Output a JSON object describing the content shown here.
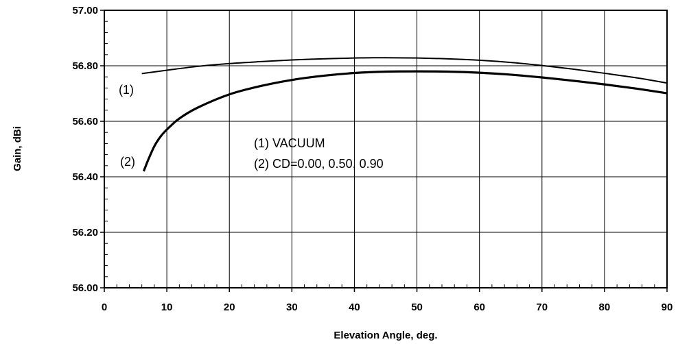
{
  "chart_data": {
    "type": "line",
    "title": "",
    "xlabel": "Elevation Angle, deg.",
    "ylabel": "Gain, dBi",
    "xlim": [
      0,
      90
    ],
    "ylim": [
      56.0,
      57.0
    ],
    "x_ticks": [
      0,
      10,
      20,
      30,
      40,
      50,
      60,
      70,
      80,
      90
    ],
    "y_ticks": [
      "56.00",
      "56.20",
      "56.40",
      "56.60",
      "56.80",
      "57.00"
    ],
    "grid": true,
    "series": [
      {
        "name": "(1) VACUUM",
        "marker_label": "(1)",
        "x": [
          6,
          10,
          15,
          20,
          25,
          30,
          35,
          40,
          43,
          45,
          50,
          55,
          60,
          65,
          70,
          75,
          80,
          85,
          90
        ],
        "y": [
          56.772,
          56.784,
          56.798,
          56.808,
          56.815,
          56.821,
          56.825,
          56.828,
          56.829,
          56.829,
          56.828,
          56.825,
          56.82,
          56.812,
          56.801,
          56.788,
          56.773,
          56.757,
          56.738
        ]
      },
      {
        "name": "(2) CD=0.00, 0.50, 0.90",
        "marker_label": "(2)",
        "x": [
          6.3,
          7,
          8,
          9,
          10,
          12,
          15,
          20,
          25,
          30,
          35,
          40,
          45,
          50,
          55,
          60,
          65,
          70,
          75,
          80,
          85,
          90
        ],
        "y": [
          56.42,
          56.46,
          56.51,
          56.545,
          56.57,
          56.61,
          56.65,
          56.697,
          56.727,
          56.749,
          56.764,
          56.774,
          56.779,
          56.78,
          56.779,
          56.775,
          56.768,
          56.758,
          56.746,
          56.733,
          56.718,
          56.701
        ]
      }
    ],
    "annotations": [
      "(1) VACUUM",
      "(2) CD=0.00, 0.50, 0.90"
    ]
  },
  "colors": {
    "line": "#000000",
    "grid": "#000000",
    "background": "#ffffff"
  }
}
